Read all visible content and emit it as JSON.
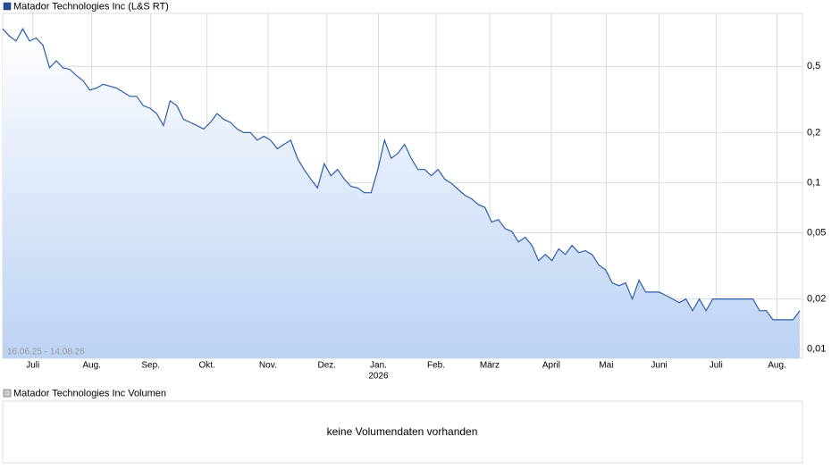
{
  "chart_data": {
    "type": "line",
    "title": "Matador Technologies Inc (L&S RT)",
    "date_range": "16.06.25 - 14.08.26",
    "year_label": "2026",
    "color": "#2a5caa",
    "log_scale": true,
    "grid": true,
    "xlim": [
      0,
      119
    ],
    "xticks": [
      {
        "value": 4.5,
        "label": "Juli"
      },
      {
        "value": 13.3,
        "label": "Aug."
      },
      {
        "value": 22.1,
        "label": "Sep."
      },
      {
        "value": 30.5,
        "label": "Okt."
      },
      {
        "value": 39.6,
        "label": "Nov."
      },
      {
        "value": 48.4,
        "label": "Dez."
      },
      {
        "value": 56.1,
        "label": "Jan."
      },
      {
        "value": 64.7,
        "label": "Feb."
      },
      {
        "value": 72.7,
        "label": "März"
      },
      {
        "value": 81.9,
        "label": "April"
      },
      {
        "value": 90.1,
        "label": "Mai"
      },
      {
        "value": 98,
        "label": "Juni"
      },
      {
        "value": 106.5,
        "label": "Juli"
      },
      {
        "value": 115.6,
        "label": "Aug."
      }
    ],
    "ylim": [
      0.0088,
      1.04
    ],
    "yticks": [
      {
        "value": 0.5,
        "label": "0,5"
      },
      {
        "value": 0.2,
        "label": "0,2"
      },
      {
        "value": 0.1,
        "label": "0,1"
      },
      {
        "value": 0.05,
        "label": "0,05"
      },
      {
        "value": 0.02,
        "label": "0,02"
      },
      {
        "value": 0.01,
        "label": "0,01"
      }
    ],
    "values": [
      0.84,
      0.76,
      0.71,
      0.84,
      0.71,
      0.74,
      0.67,
      0.49,
      0.54,
      0.49,
      0.48,
      0.44,
      0.41,
      0.36,
      0.37,
      0.39,
      0.38,
      0.37,
      0.35,
      0.33,
      0.33,
      0.29,
      0.28,
      0.26,
      0.22,
      0.31,
      0.29,
      0.24,
      0.23,
      0.22,
      0.21,
      0.23,
      0.26,
      0.24,
      0.23,
      0.21,
      0.2,
      0.2,
      0.18,
      0.19,
      0.18,
      0.16,
      0.17,
      0.18,
      0.14,
      0.12,
      0.105,
      0.093,
      0.13,
      0.11,
      0.12,
      0.105,
      0.095,
      0.093,
      0.087,
      0.087,
      0.12,
      0.18,
      0.14,
      0.15,
      0.17,
      0.14,
      0.12,
      0.12,
      0.11,
      0.12,
      0.105,
      0.099,
      0.091,
      0.084,
      0.08,
      0.074,
      0.071,
      0.058,
      0.06,
      0.053,
      0.051,
      0.044,
      0.047,
      0.042,
      0.034,
      0.037,
      0.034,
      0.04,
      0.037,
      0.042,
      0.038,
      0.039,
      0.037,
      0.032,
      0.03,
      0.025,
      0.024,
      0.025,
      0.02,
      0.026,
      0.022,
      0.022,
      0.022,
      0.021,
      0.02,
      0.019,
      0.02,
      0.017,
      0.02,
      0.017,
      0.02,
      0.02,
      0.02,
      0.02,
      0.02,
      0.02,
      0.02,
      0.017,
      0.017,
      0.015,
      0.015,
      0.015,
      0.015,
      0.017
    ]
  },
  "volume_panel": {
    "title": "Matador Technologies Inc Volumen",
    "message": "keine Volumendaten vorhanden"
  }
}
